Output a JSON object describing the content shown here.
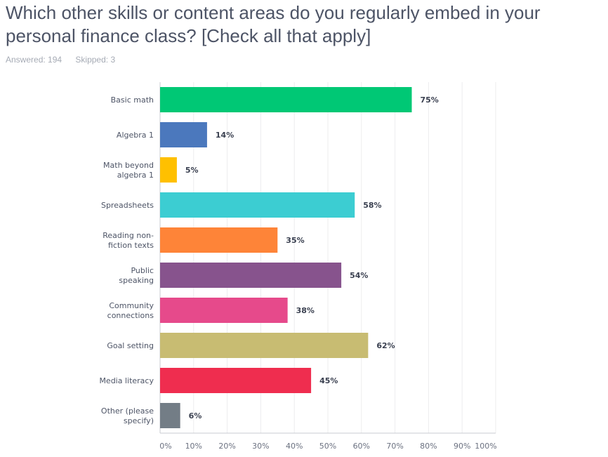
{
  "question": {
    "title": "Which other skills or content areas do you regularly embed in your personal finance class? [Check all that apply]",
    "answered": "Answered: 194",
    "skipped": "Skipped: 3"
  },
  "colors": {
    "gridline": "#ececee",
    "axis_line": "#c8cbd0",
    "category_label": "#4d5466",
    "value_label": "#3a4050",
    "tick_label": "#6b7180"
  },
  "chart_data": {
    "type": "bar",
    "orientation": "horizontal",
    "categories": [
      [
        "Basic math"
      ],
      [
        "Algebra 1"
      ],
      [
        "Math beyond",
        "algebra 1"
      ],
      [
        "Spreadsheets"
      ],
      [
        "Reading non-",
        "fiction texts"
      ],
      [
        "Public",
        "speaking"
      ],
      [
        "Community",
        "connections"
      ],
      [
        "Goal setting"
      ],
      [
        "Media literacy"
      ],
      [
        "Other (please",
        "specify)"
      ]
    ],
    "values": [
      75,
      14,
      5,
      58,
      35,
      54,
      38,
      62,
      45,
      6
    ],
    "value_labels": [
      "75%",
      "14%",
      "5%",
      "58%",
      "35%",
      "54%",
      "38%",
      "62%",
      "45%",
      "6%"
    ],
    "bar_colors": [
      "#00c875",
      "#4b78bd",
      "#ffc000",
      "#3ccdd2",
      "#fe8438",
      "#87538d",
      "#e64a8b",
      "#c8bc72",
      "#ef2d4f",
      "#737d86"
    ],
    "xticks": [
      0,
      10,
      20,
      30,
      40,
      50,
      60,
      70,
      80,
      90,
      100
    ],
    "xtick_labels": [
      "0%",
      "10%",
      "20%",
      "30%",
      "40%",
      "50%",
      "60%",
      "70%",
      "80%",
      "90%",
      "100%"
    ],
    "xlim": [
      0,
      100
    ],
    "grid": true,
    "title": "",
    "xlabel": "",
    "ylabel": ""
  }
}
